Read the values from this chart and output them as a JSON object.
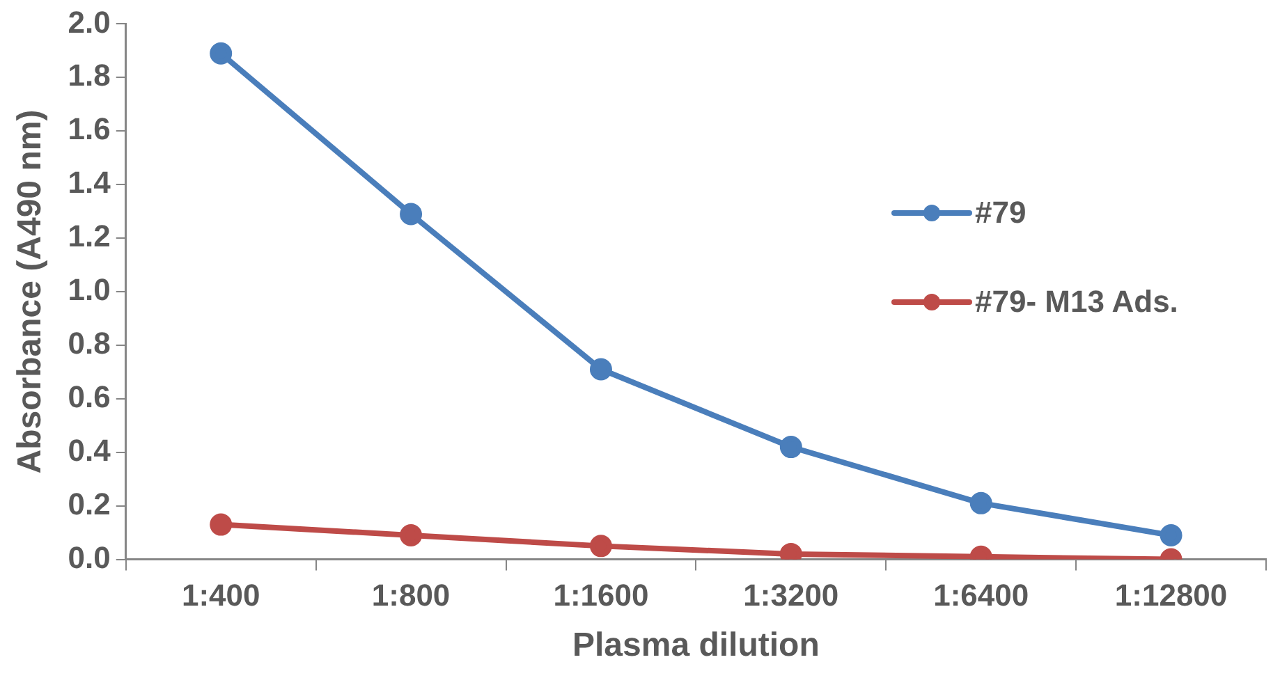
{
  "chart_data": {
    "type": "line",
    "xlabel": "Plasma dilution",
    "ylabel": "Absorbance (A490 nm)",
    "categories": [
      "1:400",
      "1:800",
      "1:1600",
      "1:3200",
      "1:6400",
      "1:12800"
    ],
    "series": [
      {
        "name": "#79",
        "color": "#4a7ebb",
        "values": [
          1.89,
          1.29,
          0.71,
          0.42,
          0.21,
          0.09
        ]
      },
      {
        "name": "#79- M13 Ads.",
        "color": "#be4b48",
        "values": [
          0.13,
          0.09,
          0.05,
          0.02,
          0.01,
          0.0
        ]
      }
    ],
    "ylim": [
      0,
      2
    ],
    "yticks": [
      {
        "value": 0,
        "label": "0.0"
      },
      {
        "value": 0.2,
        "label": "0.2"
      },
      {
        "value": 0.4,
        "label": "0.4"
      },
      {
        "value": 0.6,
        "label": "0.6"
      },
      {
        "value": 0.8,
        "label": "0.8"
      },
      {
        "value": 1,
        "label": "1.0"
      },
      {
        "value": 1.2,
        "label": "1.2"
      },
      {
        "value": 1.4,
        "label": "1.4"
      },
      {
        "value": 1.6,
        "label": "1.6"
      },
      {
        "value": 1.8,
        "label": "1.8"
      },
      {
        "value": 2,
        "label": "2.0"
      }
    ],
    "grid": false,
    "legend": "right",
    "marker": "circle",
    "line_style": "solid"
  }
}
